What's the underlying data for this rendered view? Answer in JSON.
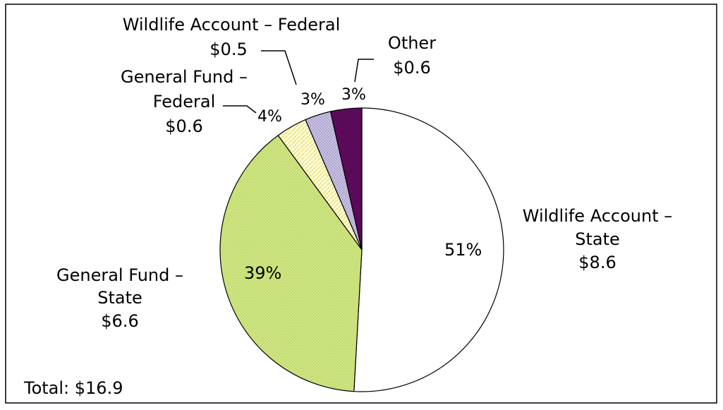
{
  "chart_data": {
    "type": "pie",
    "title": "",
    "total_label": "Total: $16.9",
    "slices": [
      {
        "name": "Wildlife Account – State",
        "label_lines": [
          "Wildlife Account –",
          "State",
          "$8.6"
        ],
        "value": 8.6,
        "percent": 51,
        "percent_label": "51%",
        "color": "#ffffff"
      },
      {
        "name": "General Fund – State",
        "label_lines": [
          "General Fund –",
          "State",
          "$6.6"
        ],
        "value": 6.6,
        "percent": 39,
        "percent_label": "39%",
        "color": "#d4e88c"
      },
      {
        "name": "General Fund – Federal",
        "label_lines": [
          "General Fund –",
          "Federal",
          "$0.6"
        ],
        "value": 0.6,
        "percent": 4,
        "percent_label": "4%",
        "color": "#fcf5b8"
      },
      {
        "name": "Wildlife Account – Federal",
        "label_lines": [
          "Wildlife Account – Federal",
          "$0.5"
        ],
        "value": 0.5,
        "percent": 3,
        "percent_label": "3%",
        "color": "#d8d0ec"
      },
      {
        "name": "Other",
        "label_lines": [
          "Other",
          "$0.6"
        ],
        "value": 0.6,
        "percent": 3,
        "percent_label": "3%",
        "color": "#5b0a5a"
      }
    ]
  }
}
